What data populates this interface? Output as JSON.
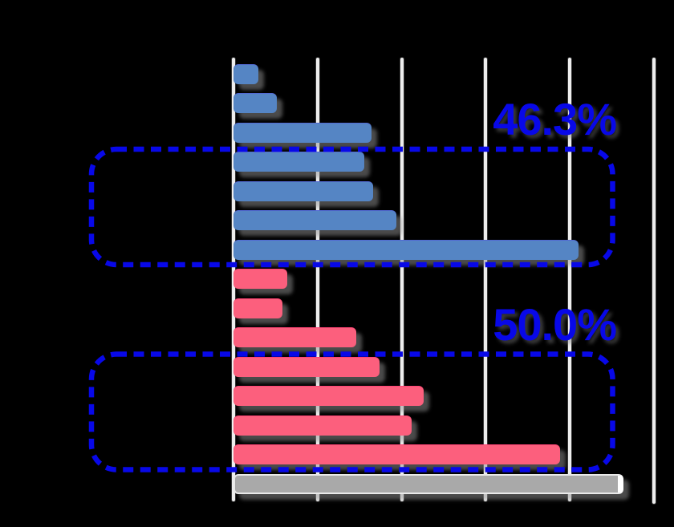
{
  "chart_data": {
    "type": "bar",
    "orientation": "horizontal",
    "x_axis": {
      "min": 0,
      "max": 25,
      "gridline_step": 5,
      "gridlines": [
        0,
        5,
        10,
        15,
        20,
        25
      ],
      "grid_visible": true,
      "tick_labels_visible": false
    },
    "y_axis": {
      "category_labels_visible": false
    },
    "bars": [
      {
        "group": "blue",
        "value": 1.5
      },
      {
        "group": "blue",
        "value": 2.6
      },
      {
        "group": "blue",
        "value": 8.2
      },
      {
        "group": "blue",
        "value": 7.8
      },
      {
        "group": "blue",
        "value": 8.3
      },
      {
        "group": "blue",
        "value": 9.7
      },
      {
        "group": "blue",
        "value": 20.5
      },
      {
        "group": "pink",
        "value": 3.2
      },
      {
        "group": "pink",
        "value": 2.9
      },
      {
        "group": "pink",
        "value": 7.3
      },
      {
        "group": "pink",
        "value": 8.7
      },
      {
        "group": "pink",
        "value": 11.3
      },
      {
        "group": "pink",
        "value": 10.6
      },
      {
        "group": "pink",
        "value": 19.4
      },
      {
        "group": "gray",
        "value": 23.2
      }
    ],
    "highlight_boxes": [
      {
        "label": "46.3%",
        "first_bar_index": 3,
        "last_bar_index": 6
      },
      {
        "label": "50.0%",
        "first_bar_index": 10,
        "last_bar_index": 13
      }
    ],
    "colors": {
      "blue": "#5585C4",
      "pink": "#FC5F7D",
      "gray": "#A9A9A9",
      "highlight": "#0808E8",
      "gridline": "#EDEDED",
      "background": "#000000"
    }
  }
}
